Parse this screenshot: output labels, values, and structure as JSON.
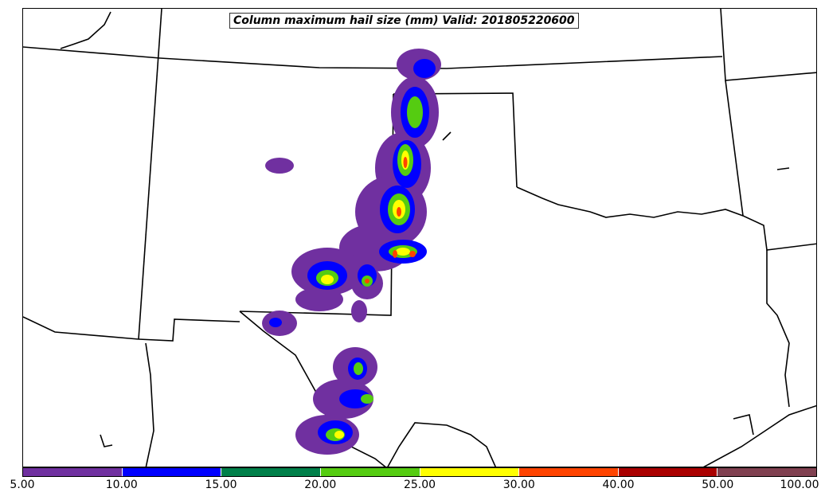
{
  "map": {
    "title": "Column maximum hail size (mm) Valid: 201805220600"
  },
  "legend": {
    "levels": [
      "5.00",
      "10.00",
      "15.00",
      "20.00",
      "25.00",
      "30.00",
      "40.00",
      "50.00",
      "100.00"
    ],
    "colors": [
      "#7030a0",
      "#0000ff",
      "#00804a",
      "#55cc11",
      "#ffff00",
      "#ff4400",
      "#aa0000",
      "#804050"
    ]
  }
}
